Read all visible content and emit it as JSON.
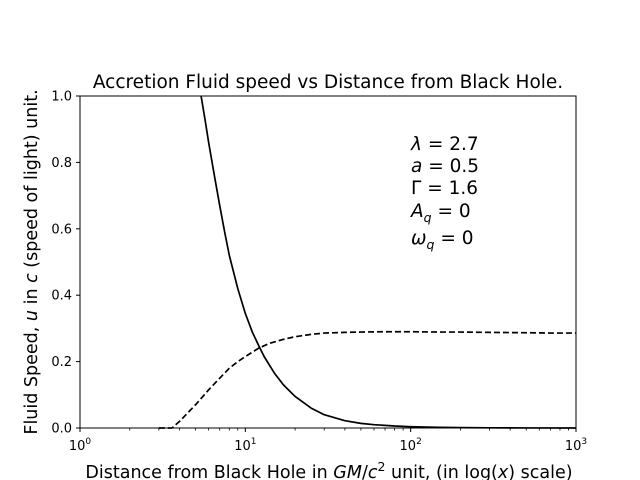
{
  "chart_data": {
    "type": "line",
    "title": "Accretion Fluid speed vs Distance from Black Hole.",
    "xlabel_prefix": "Distance from Black Hole in ",
    "xlabel_gm": "GM",
    "xlabel_slash": "/",
    "xlabel_c": "c",
    "xlabel_exp": "2",
    "xlabel_mid": " unit, (in log(",
    "xlabel_x": "x",
    "xlabel_suffix": ") scale)",
    "ylabel_prefix": "Fluid Speed, ",
    "ylabel_u": "u",
    "ylabel_mid": " in ",
    "ylabel_c": "c",
    "ylabel_suffix": " (speed of light) unit.",
    "xscale": "log",
    "xlim": [
      1,
      1000
    ],
    "ylim": [
      0,
      1
    ],
    "grid": false,
    "x_ticks": [
      {
        "base": "10",
        "exp": "0",
        "value": 1
      },
      {
        "base": "10",
        "exp": "1",
        "value": 10
      },
      {
        "base": "10",
        "exp": "2",
        "value": 100
      },
      {
        "base": "10",
        "exp": "3",
        "value": 1000
      }
    ],
    "y_ticks": [
      {
        "label": "0.0",
        "value": 0
      },
      {
        "label": "0.2",
        "value": 0.2
      },
      {
        "label": "0.4",
        "value": 0.4
      },
      {
        "label": "0.6",
        "value": 0.6
      },
      {
        "label": "0.8",
        "value": 0.8
      },
      {
        "label": "1.0",
        "value": 1.0
      }
    ],
    "annotations": [
      {
        "sym": "λ",
        "sub": "",
        "rest": " = 2.7"
      },
      {
        "sym": "a",
        "sub": "",
        "rest": " = 0.5"
      },
      {
        "sym": "Γ",
        "sub": "",
        "rest": " = 1.6"
      },
      {
        "sym": "A",
        "sub": "q",
        "rest": " = 0"
      },
      {
        "sym": "ω",
        "sub": "q",
        "rest": " = 0"
      }
    ],
    "series": [
      {
        "style": "solid",
        "x": [
          5.4,
          5.7,
          6,
          6.5,
          7,
          7.5,
          8,
          9,
          10,
          11,
          12,
          13,
          15,
          17,
          20,
          25,
          30,
          40,
          50,
          60,
          80,
          100,
          150,
          200,
          300,
          500,
          1000
        ],
        "y": [
          1.0,
          0.93,
          0.86,
          0.76,
          0.67,
          0.59,
          0.52,
          0.42,
          0.345,
          0.29,
          0.25,
          0.215,
          0.165,
          0.13,
          0.095,
          0.06,
          0.04,
          0.022,
          0.014,
          0.01,
          0.006,
          0.004,
          0.002,
          0.0012,
          0.0006,
          0.0002,
          0.0
        ]
      },
      {
        "style": "dashed",
        "x": [
          3.0,
          3.6,
          4,
          5,
          6,
          7,
          8,
          9,
          10,
          12,
          14,
          17,
          20,
          25,
          30,
          40,
          50,
          70,
          100,
          150,
          200,
          300,
          500,
          700,
          1000
        ],
        "y": [
          0.0,
          0.0,
          0.02,
          0.07,
          0.115,
          0.15,
          0.18,
          0.2,
          0.215,
          0.24,
          0.255,
          0.267,
          0.275,
          0.282,
          0.286,
          0.288,
          0.289,
          0.29,
          0.29,
          0.289,
          0.289,
          0.288,
          0.287,
          0.286,
          0.286
        ]
      }
    ]
  }
}
